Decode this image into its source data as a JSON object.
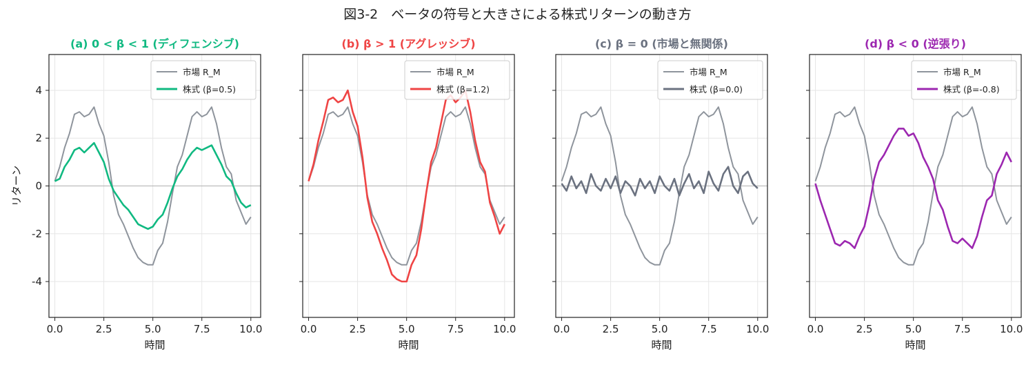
{
  "figure": {
    "title": "図3-2　ベータの符号と大きさによる株式リターンの動き方"
  },
  "chart_data": [
    {
      "type": "line",
      "title": "(a) 0 < β < 1 (ディフェンシブ)",
      "title_color": "#10b981",
      "xlabel": "時間",
      "ylabel": "リターン",
      "xlim": [
        -0.3,
        10.5
      ],
      "ylim": [
        -5.5,
        5.5
      ],
      "xticks": [
        0.0,
        2.5,
        5.0,
        7.5,
        10.0
      ],
      "xtick_labels": [
        "0.0",
        "2.5",
        "5.0",
        "7.5",
        "10.0"
      ],
      "yticks": [
        -4,
        -2,
        0,
        2,
        4
      ],
      "ytick_labels": [
        "-4",
        "-2",
        "0",
        "2",
        "4"
      ],
      "show_ytick_labels": true,
      "grid": true,
      "legend_position": "top-right",
      "beta": 0.5,
      "series": [
        {
          "name": "市場 R_M",
          "color": "#8e949c",
          "x": [
            0,
            0.25,
            0.5,
            0.75,
            1,
            1.25,
            1.5,
            1.75,
            2,
            2.25,
            2.5,
            2.75,
            3,
            3.25,
            3.5,
            3.75,
            4,
            4.25,
            4.5,
            4.75,
            5,
            5.25,
            5.5,
            5.75,
            6,
            6.25,
            6.5,
            6.75,
            7,
            7.25,
            7.5,
            7.75,
            8,
            8.25,
            8.5,
            8.75,
            9,
            9.25,
            9.5,
            9.75,
            10
          ],
          "values": [
            0.2,
            0.8,
            1.6,
            2.2,
            3.0,
            3.1,
            2.9,
            3.0,
            3.3,
            2.6,
            2.1,
            1.0,
            -0.4,
            -1.2,
            -1.6,
            -2.1,
            -2.6,
            -3.0,
            -3.2,
            -3.3,
            -3.3,
            -2.7,
            -2.4,
            -1.5,
            -0.3,
            0.8,
            1.3,
            2.1,
            2.9,
            3.1,
            2.9,
            3.0,
            3.3,
            2.6,
            1.6,
            0.8,
            0.5,
            -0.6,
            -1.1,
            -1.6,
            -1.3
          ]
        },
        {
          "name": "株式 (β=0.5)",
          "color": "#10b981",
          "x": [
            0,
            0.25,
            0.5,
            0.75,
            1,
            1.25,
            1.5,
            1.75,
            2,
            2.25,
            2.5,
            2.75,
            3,
            3.25,
            3.5,
            3.75,
            4,
            4.25,
            4.5,
            4.75,
            5,
            5.25,
            5.5,
            5.75,
            6,
            6.25,
            6.5,
            6.75,
            7,
            7.25,
            7.5,
            7.75,
            8,
            8.25,
            8.5,
            8.75,
            9,
            9.25,
            9.5,
            9.75,
            10
          ],
          "values": [
            0.2,
            0.3,
            0.8,
            1.1,
            1.5,
            1.6,
            1.4,
            1.6,
            1.8,
            1.4,
            1.0,
            0.3,
            -0.2,
            -0.5,
            -0.8,
            -1.0,
            -1.3,
            -1.6,
            -1.7,
            -1.8,
            -1.7,
            -1.4,
            -1.2,
            -0.7,
            -0.1,
            0.4,
            0.7,
            1.1,
            1.4,
            1.6,
            1.5,
            1.6,
            1.7,
            1.3,
            0.9,
            0.4,
            0.2,
            -0.3,
            -0.7,
            -0.9,
            -0.8
          ]
        }
      ]
    },
    {
      "type": "line",
      "title": "(b) β > 1 (アグレッシブ)",
      "title_color": "#ef4444",
      "xlabel": "時間",
      "ylabel": "",
      "xlim": [
        -0.3,
        10.5
      ],
      "ylim": [
        -5.5,
        5.5
      ],
      "xticks": [
        0.0,
        2.5,
        5.0,
        7.5,
        10.0
      ],
      "xtick_labels": [
        "0.0",
        "2.5",
        "5.0",
        "7.5",
        "10.0"
      ],
      "yticks": [
        -4,
        -2,
        0,
        2,
        4
      ],
      "ytick_labels": [
        "-4",
        "-2",
        "0",
        "2",
        "4"
      ],
      "show_ytick_labels": false,
      "grid": true,
      "legend_position": "top-right",
      "beta": 1.2,
      "series": [
        {
          "name": "市場 R_M",
          "color": "#8e949c",
          "x": [
            0,
            0.25,
            0.5,
            0.75,
            1,
            1.25,
            1.5,
            1.75,
            2,
            2.25,
            2.5,
            2.75,
            3,
            3.25,
            3.5,
            3.75,
            4,
            4.25,
            4.5,
            4.75,
            5,
            5.25,
            5.5,
            5.75,
            6,
            6.25,
            6.5,
            6.75,
            7,
            7.25,
            7.5,
            7.75,
            8,
            8.25,
            8.5,
            8.75,
            9,
            9.25,
            9.5,
            9.75,
            10
          ],
          "values": [
            0.2,
            0.8,
            1.6,
            2.2,
            3.0,
            3.1,
            2.9,
            3.0,
            3.3,
            2.6,
            2.1,
            1.0,
            -0.4,
            -1.2,
            -1.6,
            -2.1,
            -2.6,
            -3.0,
            -3.2,
            -3.3,
            -3.3,
            -2.7,
            -2.4,
            -1.5,
            -0.3,
            0.8,
            1.3,
            2.1,
            2.9,
            3.1,
            2.9,
            3.0,
            3.3,
            2.6,
            1.6,
            0.8,
            0.5,
            -0.6,
            -1.1,
            -1.6,
            -1.3
          ]
        },
        {
          "name": "株式 (β=1.2)",
          "color": "#ef4444",
          "x": [
            0,
            0.25,
            0.5,
            0.75,
            1,
            1.25,
            1.5,
            1.75,
            2,
            2.25,
            2.5,
            2.75,
            3,
            3.25,
            3.5,
            3.75,
            4,
            4.25,
            4.5,
            4.75,
            5,
            5.25,
            5.5,
            5.75,
            6,
            6.25,
            6.5,
            6.75,
            7,
            7.25,
            7.5,
            7.75,
            8,
            8.25,
            8.5,
            8.75,
            9,
            9.25,
            9.5,
            9.75,
            10
          ],
          "values": [
            0.2,
            0.9,
            1.9,
            2.7,
            3.6,
            3.7,
            3.5,
            3.6,
            4.0,
            3.1,
            2.5,
            1.2,
            -0.5,
            -1.5,
            -2.0,
            -2.6,
            -3.1,
            -3.7,
            -3.9,
            -4.0,
            -4.0,
            -3.3,
            -2.9,
            -1.8,
            -0.3,
            1.0,
            1.6,
            2.6,
            3.6,
            3.8,
            3.5,
            3.7,
            4.0,
            3.1,
            1.9,
            1.0,
            0.6,
            -0.7,
            -1.3,
            -2.0,
            -1.6
          ]
        }
      ]
    },
    {
      "type": "line",
      "title": "(c) β = 0 (市場と無関係)",
      "title_color": "#6b7280",
      "xlabel": "時間",
      "ylabel": "",
      "xlim": [
        -0.3,
        10.5
      ],
      "ylim": [
        -5.5,
        5.5
      ],
      "xticks": [
        0.0,
        2.5,
        5.0,
        7.5,
        10.0
      ],
      "xtick_labels": [
        "0.0",
        "2.5",
        "5.0",
        "7.5",
        "10.0"
      ],
      "yticks": [
        -4,
        -2,
        0,
        2,
        4
      ],
      "ytick_labels": [
        "-4",
        "-2",
        "0",
        "2",
        "4"
      ],
      "show_ytick_labels": false,
      "grid": true,
      "legend_position": "top-right",
      "beta": 0.0,
      "series": [
        {
          "name": "市場 R_M",
          "color": "#8e949c",
          "x": [
            0,
            0.25,
            0.5,
            0.75,
            1,
            1.25,
            1.5,
            1.75,
            2,
            2.25,
            2.5,
            2.75,
            3,
            3.25,
            3.5,
            3.75,
            4,
            4.25,
            4.5,
            4.75,
            5,
            5.25,
            5.5,
            5.75,
            6,
            6.25,
            6.5,
            6.75,
            7,
            7.25,
            7.5,
            7.75,
            8,
            8.25,
            8.5,
            8.75,
            9,
            9.25,
            9.5,
            9.75,
            10
          ],
          "values": [
            0.2,
            0.8,
            1.6,
            2.2,
            3.0,
            3.1,
            2.9,
            3.0,
            3.3,
            2.6,
            2.1,
            1.0,
            -0.4,
            -1.2,
            -1.6,
            -2.1,
            -2.6,
            -3.0,
            -3.2,
            -3.3,
            -3.3,
            -2.7,
            -2.4,
            -1.5,
            -0.3,
            0.8,
            1.3,
            2.1,
            2.9,
            3.1,
            2.9,
            3.0,
            3.3,
            2.6,
            1.6,
            0.8,
            0.5,
            -0.6,
            -1.1,
            -1.6,
            -1.3
          ]
        },
        {
          "name": "株式 (β=0.0)",
          "color": "#6b7280",
          "x": [
            0,
            0.25,
            0.5,
            0.75,
            1,
            1.25,
            1.5,
            1.75,
            2,
            2.25,
            2.5,
            2.75,
            3,
            3.25,
            3.5,
            3.75,
            4,
            4.25,
            4.5,
            4.75,
            5,
            5.25,
            5.5,
            5.75,
            6,
            6.25,
            6.5,
            6.75,
            7,
            7.25,
            7.5,
            7.75,
            8,
            8.25,
            8.5,
            8.75,
            9,
            9.25,
            9.5,
            9.75,
            10
          ],
          "values": [
            0.1,
            -0.2,
            0.4,
            -0.1,
            0.2,
            -0.3,
            0.5,
            0.0,
            -0.2,
            0.3,
            -0.1,
            0.4,
            -0.3,
            0.2,
            0.0,
            -0.4,
            0.3,
            -0.1,
            0.2,
            -0.3,
            0.4,
            0.0,
            -0.2,
            0.3,
            -0.4,
            0.1,
            0.5,
            -0.1,
            0.2,
            -0.3,
            0.6,
            0.1,
            -0.2,
            0.5,
            0.8,
            0.0,
            -0.3,
            0.4,
            0.6,
            0.1,
            -0.1
          ]
        }
      ]
    },
    {
      "type": "line",
      "title": "(d) β < 0 (逆張り)",
      "title_color": "#9c27b0",
      "xlabel": "時間",
      "ylabel": "",
      "xlim": [
        -0.3,
        10.5
      ],
      "ylim": [
        -5.5,
        5.5
      ],
      "xticks": [
        0.0,
        2.5,
        5.0,
        7.5,
        10.0
      ],
      "xtick_labels": [
        "0.0",
        "2.5",
        "5.0",
        "7.5",
        "10.0"
      ],
      "yticks": [
        -4,
        -2,
        0,
        2,
        4
      ],
      "ytick_labels": [
        "-4",
        "-2",
        "0",
        "2",
        "4"
      ],
      "show_ytick_labels": false,
      "grid": true,
      "legend_position": "top-right",
      "beta": -0.8,
      "series": [
        {
          "name": "市場 R_M",
          "color": "#8e949c",
          "x": [
            0,
            0.25,
            0.5,
            0.75,
            1,
            1.25,
            1.5,
            1.75,
            2,
            2.25,
            2.5,
            2.75,
            3,
            3.25,
            3.5,
            3.75,
            4,
            4.25,
            4.5,
            4.75,
            5,
            5.25,
            5.5,
            5.75,
            6,
            6.25,
            6.5,
            6.75,
            7,
            7.25,
            7.5,
            7.75,
            8,
            8.25,
            8.5,
            8.75,
            9,
            9.25,
            9.5,
            9.75,
            10
          ],
          "values": [
            0.2,
            0.8,
            1.6,
            2.2,
            3.0,
            3.1,
            2.9,
            3.0,
            3.3,
            2.6,
            2.1,
            1.0,
            -0.4,
            -1.2,
            -1.6,
            -2.1,
            -2.6,
            -3.0,
            -3.2,
            -3.3,
            -3.3,
            -2.7,
            -2.4,
            -1.5,
            -0.3,
            0.8,
            1.3,
            2.1,
            2.9,
            3.1,
            2.9,
            3.0,
            3.3,
            2.6,
            1.6,
            0.8,
            0.5,
            -0.6,
            -1.1,
            -1.6,
            -1.3
          ]
        },
        {
          "name": "株式 (β=-0.8)",
          "color": "#9c27b0",
          "x": [
            0,
            0.25,
            0.5,
            0.75,
            1,
            1.25,
            1.5,
            1.75,
            2,
            2.25,
            2.5,
            2.75,
            3,
            3.25,
            3.5,
            3.75,
            4,
            4.25,
            4.5,
            4.75,
            5,
            5.25,
            5.5,
            5.75,
            6,
            6.25,
            6.5,
            6.75,
            7,
            7.25,
            7.5,
            7.75,
            8,
            8.25,
            8.5,
            8.75,
            9,
            9.25,
            9.5,
            9.75,
            10
          ],
          "values": [
            0.1,
            -0.6,
            -1.2,
            -1.8,
            -2.4,
            -2.5,
            -2.3,
            -2.4,
            -2.6,
            -2.1,
            -1.7,
            -0.8,
            0.3,
            1.0,
            1.3,
            1.7,
            2.1,
            2.4,
            2.4,
            2.1,
            2.2,
            1.8,
            1.2,
            0.8,
            0.3,
            -0.6,
            -1.0,
            -1.7,
            -2.3,
            -2.4,
            -2.2,
            -2.4,
            -2.6,
            -2.1,
            -1.3,
            -0.6,
            -0.4,
            0.5,
            0.9,
            1.4,
            1.0
          ]
        }
      ]
    }
  ]
}
